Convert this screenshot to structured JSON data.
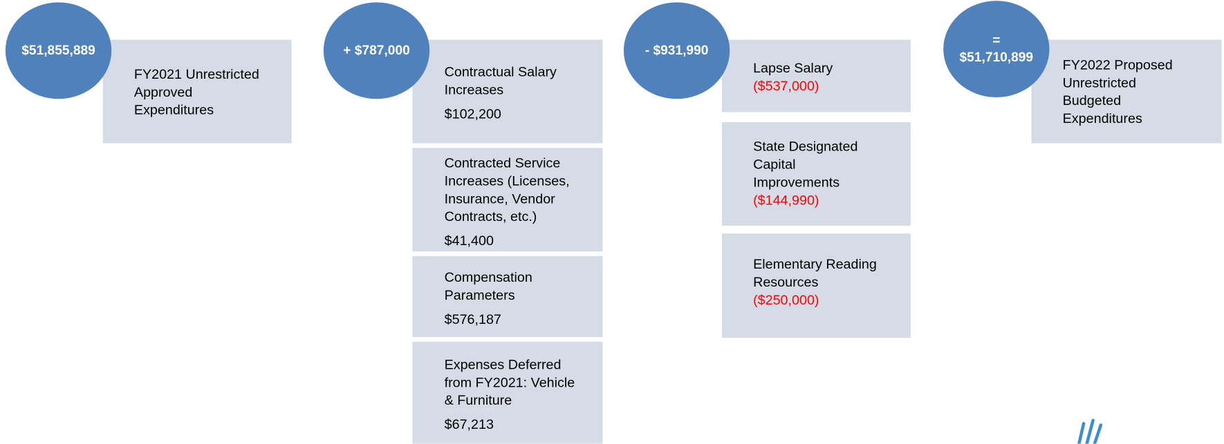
{
  "columns": [
    {
      "circle": [
        "$51,855,889"
      ],
      "boxes": [
        {
          "label": [
            "FY2021 Unrestricted",
            "Approved",
            "Expenditures"
          ]
        }
      ]
    },
    {
      "circle": [
        "+ $787,000"
      ],
      "boxes": [
        {
          "label": [
            "Contractual Salary",
            "Increases"
          ],
          "amount": "$102,200"
        },
        {
          "label": [
            "Contracted Service",
            "Increases (Licenses,",
            "Insurance, Vendor",
            "Contracts, etc.)"
          ],
          "amount": "$41,400"
        },
        {
          "label": [
            "Compensation",
            "Parameters"
          ],
          "amount": "$576,187"
        },
        {
          "label": [
            "Expenses Deferred",
            "from FY2021: Vehicle",
            "& Furniture"
          ],
          "amount": "$67,213"
        }
      ]
    },
    {
      "circle": [
        "- $931,990"
      ],
      "boxes": [
        {
          "label": [
            "Lapse Salary"
          ],
          "amount": "($537,000)"
        },
        {
          "label": [
            "State Designated",
            "Capital",
            "Improvements"
          ],
          "amount": "($144,990)"
        },
        {
          "label": [
            "Elementary Reading",
            "Resources"
          ],
          "amount": "($250,000)"
        }
      ]
    },
    {
      "circle": [
        "=",
        "$51,710,899"
      ],
      "boxes": [
        {
          "label": [
            "FY2022 Proposed",
            "Unrestricted",
            "Budgeted",
            "Expenditures"
          ]
        }
      ]
    }
  ]
}
